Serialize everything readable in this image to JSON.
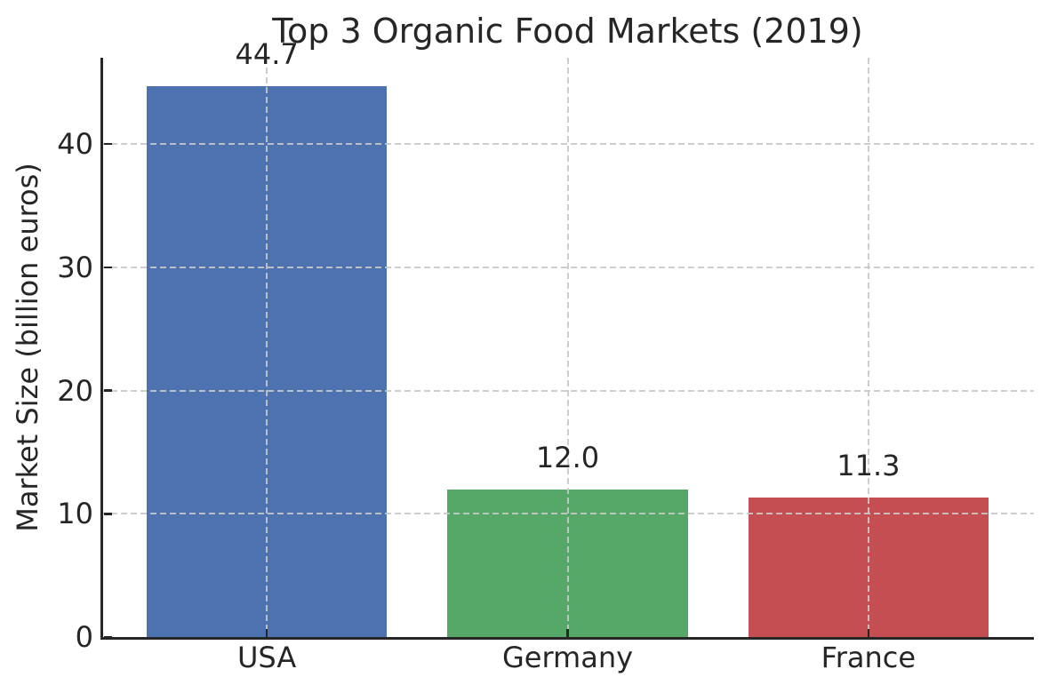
{
  "chart_data": {
    "type": "bar",
    "title": "Top 3 Organic Food Markets (2019)",
    "ylabel": "Market Size (billion euros)",
    "xlabel": "",
    "categories": [
      "USA",
      "Germany",
      "France"
    ],
    "values": [
      44.7,
      12.0,
      11.3
    ],
    "value_labels": [
      "44.7",
      "12.0",
      "11.3"
    ],
    "bar_colors": [
      "#4C72B0",
      "#55A868",
      "#C44E52"
    ],
    "yticks": [
      0,
      10,
      20,
      30,
      40
    ],
    "ytick_labels": [
      "0",
      "10",
      "20",
      "30",
      "40"
    ],
    "ylim": [
      0,
      47
    ],
    "bar_width_fraction": 0.8,
    "grid": "dashed",
    "grid_color": "#c8c8c8",
    "grid_above_bars": true,
    "axis_color": "#262626",
    "text_color": "#262626",
    "legend": "none",
    "spines": [
      "left",
      "bottom"
    ]
  }
}
